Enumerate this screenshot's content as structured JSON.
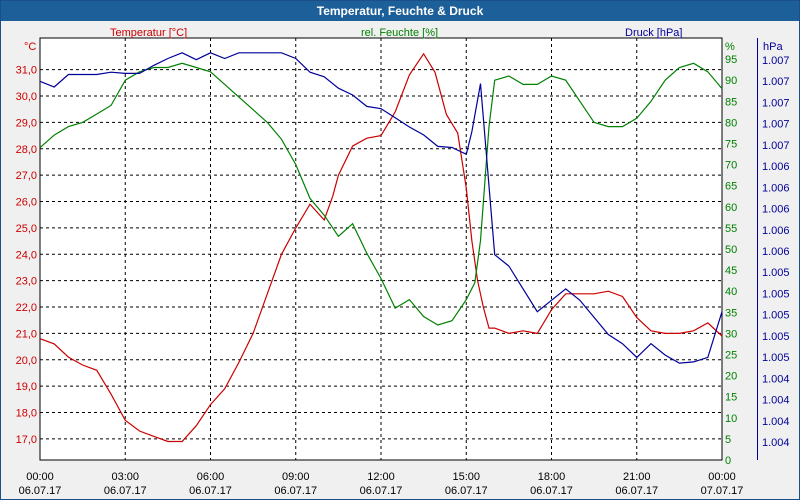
{
  "window": {
    "title": "Temperatur, Feuchte & Druck"
  },
  "colors": {
    "temperature": "#cc0000",
    "humidity": "#008000",
    "pressure": "#000099",
    "grid": "#000000",
    "plot_bg": "#ffffff",
    "titlebar": "#1d5f99"
  },
  "chart_data": {
    "type": "line",
    "title": "Temperatur, Feuchte & Druck",
    "grid": true,
    "x": {
      "tick_labels": [
        {
          "time": "00:00",
          "date": "06.07.17"
        },
        {
          "time": "03:00",
          "date": "06.07.17"
        },
        {
          "time": "06:00",
          "date": "06.07.17"
        },
        {
          "time": "09:00",
          "date": "06.07.17"
        },
        {
          "time": "12:00",
          "date": "06.07.17"
        },
        {
          "time": "15:00",
          "date": "06.07.17"
        },
        {
          "time": "18:00",
          "date": "06.07.17"
        },
        {
          "time": "21:00",
          "date": "06.07.17"
        },
        {
          "time": "00:00",
          "date": "07.07.17"
        }
      ],
      "range_hours": [
        0,
        24
      ]
    },
    "axes": {
      "temperature": {
        "label": "Temperatur [°C]",
        "unit": "°C",
        "range": [
          16.2,
          32.2
        ],
        "ticks": [
          "31,0",
          "30,0",
          "29,0",
          "28,0",
          "27,0",
          "26,0",
          "25,0",
          "24,0",
          "23,0",
          "22,0",
          "21,0",
          "20,0",
          "19,0",
          "18,0",
          "17,0"
        ]
      },
      "humidity": {
        "label": "rel. Feuchte [%]",
        "unit": "%",
        "range": [
          0,
          100
        ],
        "ticks": [
          "95",
          "90",
          "85",
          "80",
          "75",
          "70",
          "65",
          "60",
          "55",
          "50",
          "45",
          "40",
          "35",
          "30",
          "25",
          "20",
          "15",
          "10",
          "5",
          "0"
        ]
      },
      "pressure": {
        "label": "Druck [hPa]",
        "unit": "hPa",
        "range": [
          1003.7,
          1007.4
        ],
        "ticks": [
          "1.007",
          "1.007",
          "1.007",
          "1.007",
          "1.007",
          "1.006",
          "1.006",
          "1.006",
          "1.006",
          "1.006",
          "1.005",
          "1.005",
          "1.005",
          "1.005",
          "1.005",
          "1.004",
          "1.004",
          "1.004",
          "1.004"
        ]
      }
    },
    "series": [
      {
        "name": "Temperatur [°C]",
        "axis": "temperature",
        "x": [
          0,
          0.5,
          1,
          1.5,
          2,
          2.5,
          3,
          3.5,
          4,
          4.5,
          5,
          5.5,
          6,
          6.5,
          7,
          7.5,
          8,
          8.5,
          9,
          9.5,
          10,
          10.3,
          10.5,
          11,
          11.5,
          12,
          12.5,
          13,
          13.5,
          13.9,
          14.3,
          14.7,
          15,
          15.2,
          15.4,
          15.6,
          15.8,
          16,
          16.5,
          17,
          17.5,
          18,
          18.5,
          19,
          19.5,
          20,
          20.5,
          21,
          21.5,
          22,
          22.5,
          23,
          23.5,
          24
        ],
        "y": [
          20.8,
          20.6,
          20.1,
          19.8,
          19.6,
          18.7,
          17.7,
          17.3,
          17.1,
          16.9,
          16.9,
          17.5,
          18.3,
          18.9,
          19.9,
          21.0,
          22.5,
          24.0,
          25.0,
          25.9,
          25.3,
          26.2,
          27.0,
          28.1,
          28.4,
          28.5,
          29.4,
          30.8,
          31.6,
          30.9,
          29.3,
          28.6,
          26.5,
          24.5,
          23.0,
          22.0,
          21.2,
          21.2,
          21.0,
          21.1,
          21.0,
          21.9,
          22.5,
          22.5,
          22.5,
          22.6,
          22.4,
          21.6,
          21.1,
          21.0,
          21.0,
          21.1,
          21.4,
          20.9
        ]
      },
      {
        "name": "rel. Feuchte [%]",
        "axis": "humidity",
        "x": [
          0,
          0.5,
          1,
          1.5,
          2,
          2.5,
          3,
          3.5,
          4,
          4.5,
          5,
          5.5,
          6,
          6.5,
          7,
          7.5,
          8,
          8.5,
          9,
          9.5,
          10,
          10.5,
          11,
          11.5,
          12,
          12.5,
          13,
          13.5,
          14,
          14.5,
          15,
          15.3,
          15.5,
          15.8,
          16,
          16.5,
          17,
          17.5,
          18,
          18.5,
          19,
          19.5,
          20,
          20.5,
          21,
          21.5,
          22,
          22.5,
          23,
          23.5,
          24
        ],
        "y": [
          74,
          77,
          79,
          80,
          82,
          84,
          90,
          92,
          93,
          93,
          94,
          93,
          92,
          89,
          86,
          83,
          80,
          76,
          70,
          62,
          58,
          53,
          56,
          49,
          43,
          36,
          38,
          34,
          32,
          33,
          38,
          42,
          52,
          79,
          90,
          91,
          89,
          89,
          91,
          90,
          85,
          80,
          79,
          79,
          81,
          85,
          90,
          93,
          94,
          92,
          88
        ]
      },
      {
        "name": "Druck [hPa]",
        "axis": "pressure",
        "x": [
          0,
          0.5,
          1,
          1.5,
          2,
          2.5,
          3,
          3.5,
          4,
          4.5,
          5,
          5.5,
          6,
          6.5,
          7,
          7.5,
          8,
          8.5,
          9,
          9.5,
          10,
          10.5,
          11,
          11.5,
          12,
          12.5,
          13,
          13.5,
          14,
          14.5,
          15,
          15.2,
          15.5,
          16,
          16.5,
          17,
          17.5,
          18,
          18.5,
          19,
          19.5,
          20,
          20.5,
          21,
          21.5,
          22,
          22.5,
          23,
          23.5,
          24
        ],
        "y": [
          1007.02,
          1006.97,
          1007.08,
          1007.08,
          1007.08,
          1007.1,
          1007.09,
          1007.09,
          1007.16,
          1007.22,
          1007.27,
          1007.21,
          1007.27,
          1007.22,
          1007.27,
          1007.27,
          1007.27,
          1007.27,
          1007.22,
          1007.1,
          1007.06,
          1006.96,
          1006.9,
          1006.8,
          1006.78,
          1006.7,
          1006.62,
          1006.55,
          1006.45,
          1006.44,
          1006.38,
          1006.58,
          1007.0,
          1005.5,
          1005.4,
          1005.2,
          1005.0,
          1005.1,
          1005.2,
          1005.1,
          1004.95,
          1004.8,
          1004.72,
          1004.6,
          1004.72,
          1004.62,
          1004.55,
          1004.56,
          1004.6,
          1005.0
        ]
      }
    ]
  }
}
